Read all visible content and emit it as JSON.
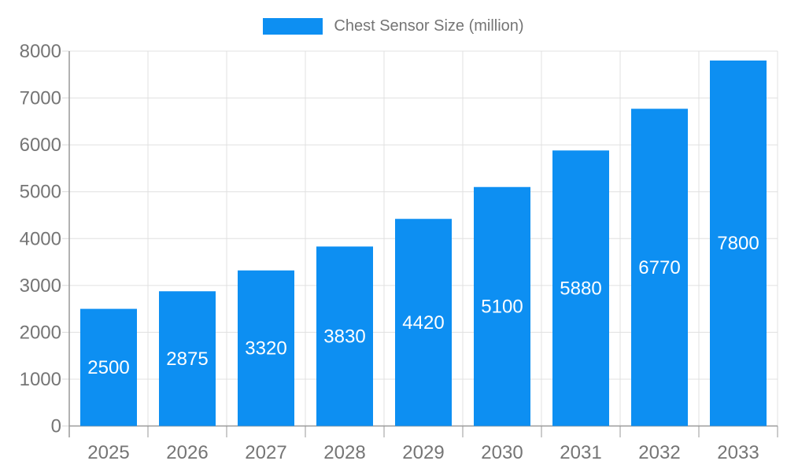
{
  "legend": {
    "label": "Chest Sensor Size (million)"
  },
  "chart_data": {
    "type": "bar",
    "title": "Chest Sensor Size (million)",
    "series_name": "Chest Sensor Size (million)",
    "categories": [
      "2025",
      "2026",
      "2027",
      "2028",
      "2029",
      "2030",
      "2031",
      "2032",
      "2033"
    ],
    "values": [
      2500,
      2875,
      3320,
      3830,
      4420,
      5100,
      5880,
      6770,
      7800
    ],
    "bar_value_labels": [
      "2500",
      "2875",
      "3320",
      "3830",
      "4420",
      "5100",
      "5880",
      "6770",
      "7800"
    ],
    "xlabel": "",
    "ylabel": "",
    "ylim": [
      0,
      8000
    ],
    "ytick_step": 1000,
    "yticks": [
      "0",
      "1000",
      "2000",
      "3000",
      "4000",
      "5000",
      "6000",
      "7000",
      "8000"
    ],
    "grid": true,
    "legend_position": "top-center",
    "colors": {
      "bar": "#0D8FF2",
      "axis_text": "#757575",
      "grid_line": "#E0E0E0",
      "axis_line": "#999999",
      "minor_tick": "#D9D9D9",
      "bar_label": "#FFFFFF",
      "background": "#FFFFFF"
    }
  }
}
